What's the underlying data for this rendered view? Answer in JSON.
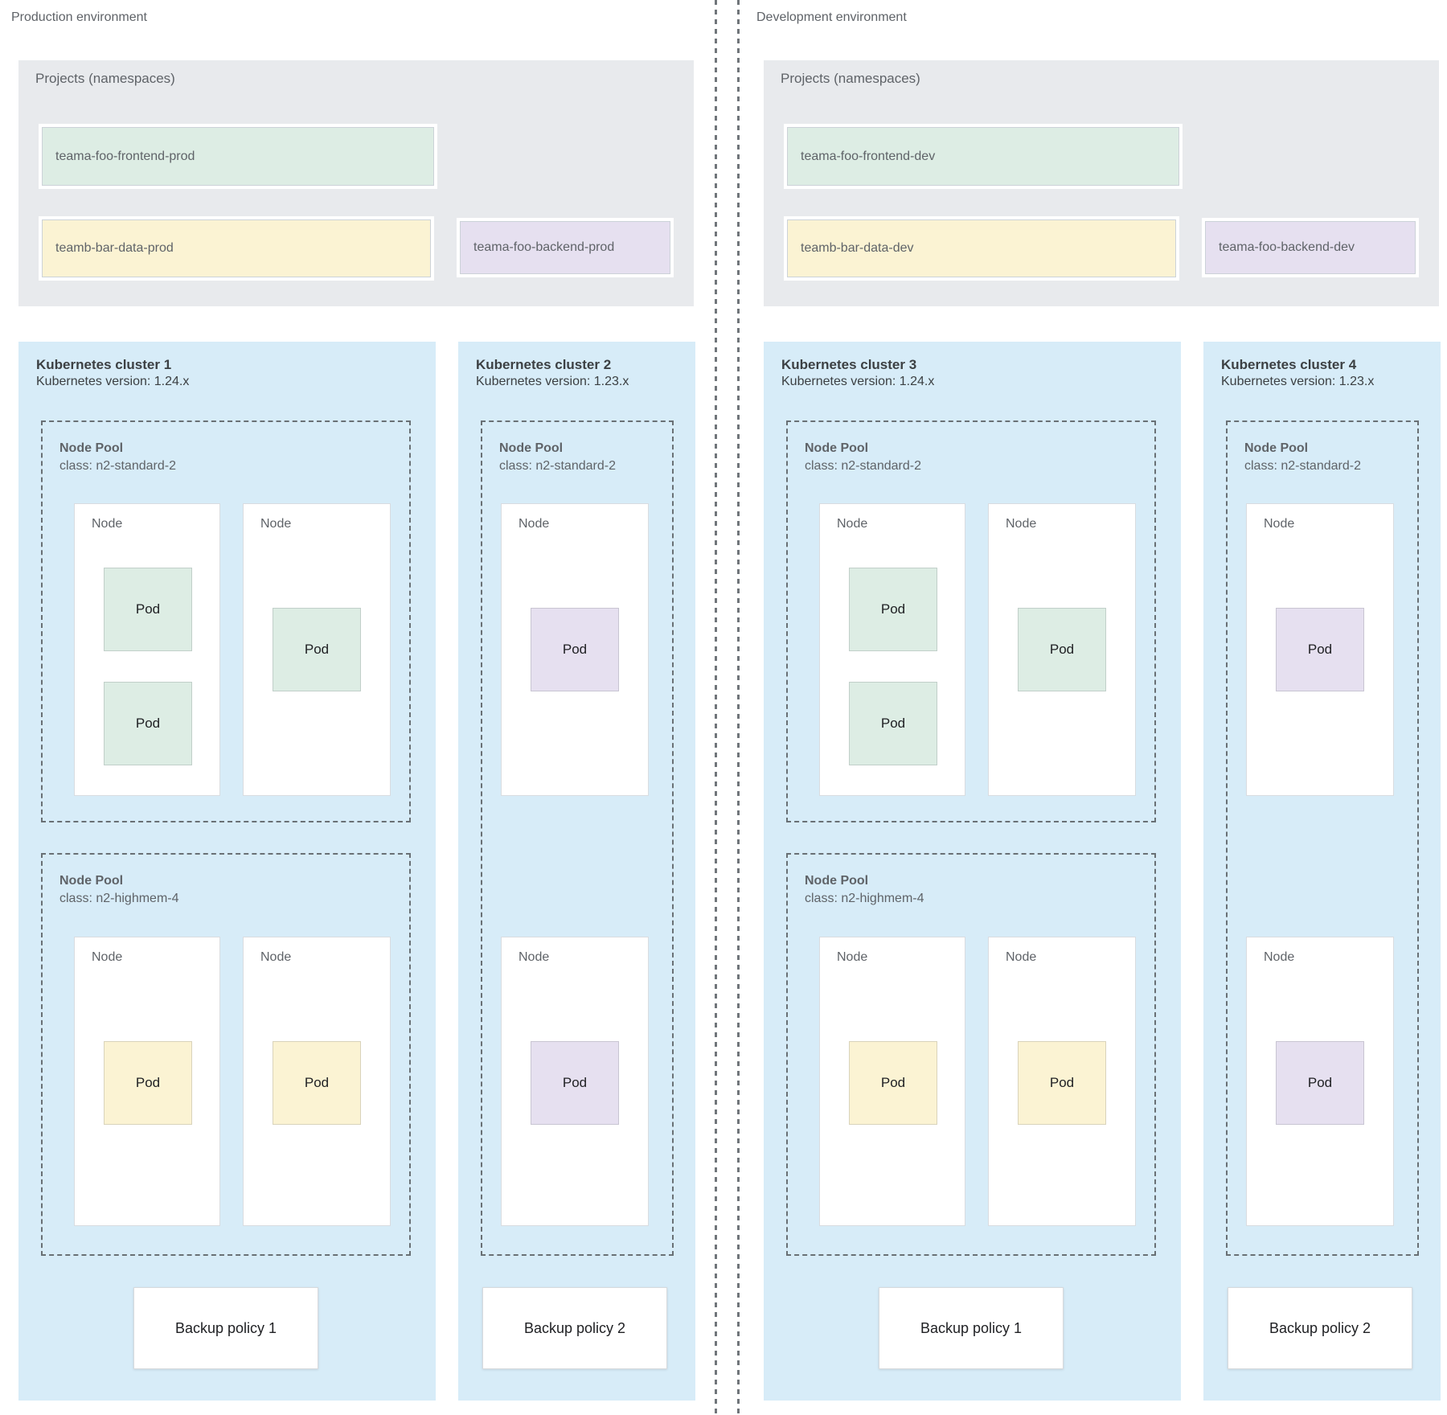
{
  "colors": {
    "cluster_blue": "#d7ecf8",
    "panel_gray": "#e8eaed",
    "project_green": "#ddede4",
    "project_yellow": "#fbf3d3",
    "project_purple": "#e6e0f0",
    "divider_gray": "#70757a",
    "text_gray": "#5f6368",
    "text_dark": "#202124"
  },
  "environments": [
    {
      "label": "Production environment",
      "projects_panel": {
        "title": "Projects (namespaces)",
        "projects": [
          {
            "name": "teama-foo-frontend-prod",
            "color": "green"
          },
          {
            "name": "teamb-bar-data-prod",
            "color": "yellow"
          },
          {
            "name": "teama-foo-backend-prod",
            "color": "purple"
          }
        ]
      },
      "clusters": [
        {
          "title": "Kubernetes cluster 1",
          "version": "Kubernetes version: 1.24.x",
          "node_pools": [
            {
              "title": "Node Pool",
              "class": "class: n2-standard-2",
              "nodes": [
                {
                  "label": "Node",
                  "pods": [
                    {
                      "label": "Pod",
                      "color": "green"
                    },
                    {
                      "label": "Pod",
                      "color": "green"
                    }
                  ]
                },
                {
                  "label": "Node",
                  "pods": [
                    {
                      "label": "Pod",
                      "color": "green"
                    }
                  ]
                }
              ]
            },
            {
              "title": "Node Pool",
              "class": "class: n2-highmem-4",
              "nodes": [
                {
                  "label": "Node",
                  "pods": [
                    {
                      "label": "Pod",
                      "color": "yellow"
                    }
                  ]
                },
                {
                  "label": "Node",
                  "pods": [
                    {
                      "label": "Pod",
                      "color": "yellow"
                    }
                  ]
                }
              ]
            }
          ],
          "backup_policy": "Backup policy 1"
        },
        {
          "title": "Kubernetes cluster 2",
          "version": "Kubernetes version: 1.23.x",
          "node_pools": [
            {
              "title": "Node Pool",
              "class": "class: n2-standard-2",
              "nodes": [
                {
                  "label": "Node",
                  "pods": [
                    {
                      "label": "Pod",
                      "color": "purple"
                    }
                  ]
                },
                {
                  "label": "Node",
                  "pods": [
                    {
                      "label": "Pod",
                      "color": "purple"
                    }
                  ]
                }
              ]
            }
          ],
          "backup_policy": "Backup policy 2"
        }
      ]
    },
    {
      "label": "Development environment",
      "projects_panel": {
        "title": "Projects (namespaces)",
        "projects": [
          {
            "name": "teama-foo-frontend-dev",
            "color": "green"
          },
          {
            "name": "teamb-bar-data-dev",
            "color": "yellow"
          },
          {
            "name": "teama-foo-backend-dev",
            "color": "purple"
          }
        ]
      },
      "clusters": [
        {
          "title": "Kubernetes cluster 3",
          "version": "Kubernetes version: 1.24.x",
          "node_pools": [
            {
              "title": "Node Pool",
              "class": "class: n2-standard-2",
              "nodes": [
                {
                  "label": "Node",
                  "pods": [
                    {
                      "label": "Pod",
                      "color": "green"
                    },
                    {
                      "label": "Pod",
                      "color": "green"
                    }
                  ]
                },
                {
                  "label": "Node",
                  "pods": [
                    {
                      "label": "Pod",
                      "color": "green"
                    }
                  ]
                }
              ]
            },
            {
              "title": "Node Pool",
              "class": "class: n2-highmem-4",
              "nodes": [
                {
                  "label": "Node",
                  "pods": [
                    {
                      "label": "Pod",
                      "color": "yellow"
                    }
                  ]
                },
                {
                  "label": "Node",
                  "pods": [
                    {
                      "label": "Pod",
                      "color": "yellow"
                    }
                  ]
                }
              ]
            }
          ],
          "backup_policy": "Backup policy 1"
        },
        {
          "title": "Kubernetes cluster 4",
          "version": "Kubernetes version: 1.23.x",
          "node_pools": [
            {
              "title": "Node Pool",
              "class": "class: n2-standard-2",
              "nodes": [
                {
                  "label": "Node",
                  "pods": [
                    {
                      "label": "Pod",
                      "color": "purple"
                    }
                  ]
                },
                {
                  "label": "Node",
                  "pods": [
                    {
                      "label": "Pod",
                      "color": "purple"
                    }
                  ]
                }
              ]
            }
          ],
          "backup_policy": "Backup policy 2"
        }
      ]
    }
  ]
}
